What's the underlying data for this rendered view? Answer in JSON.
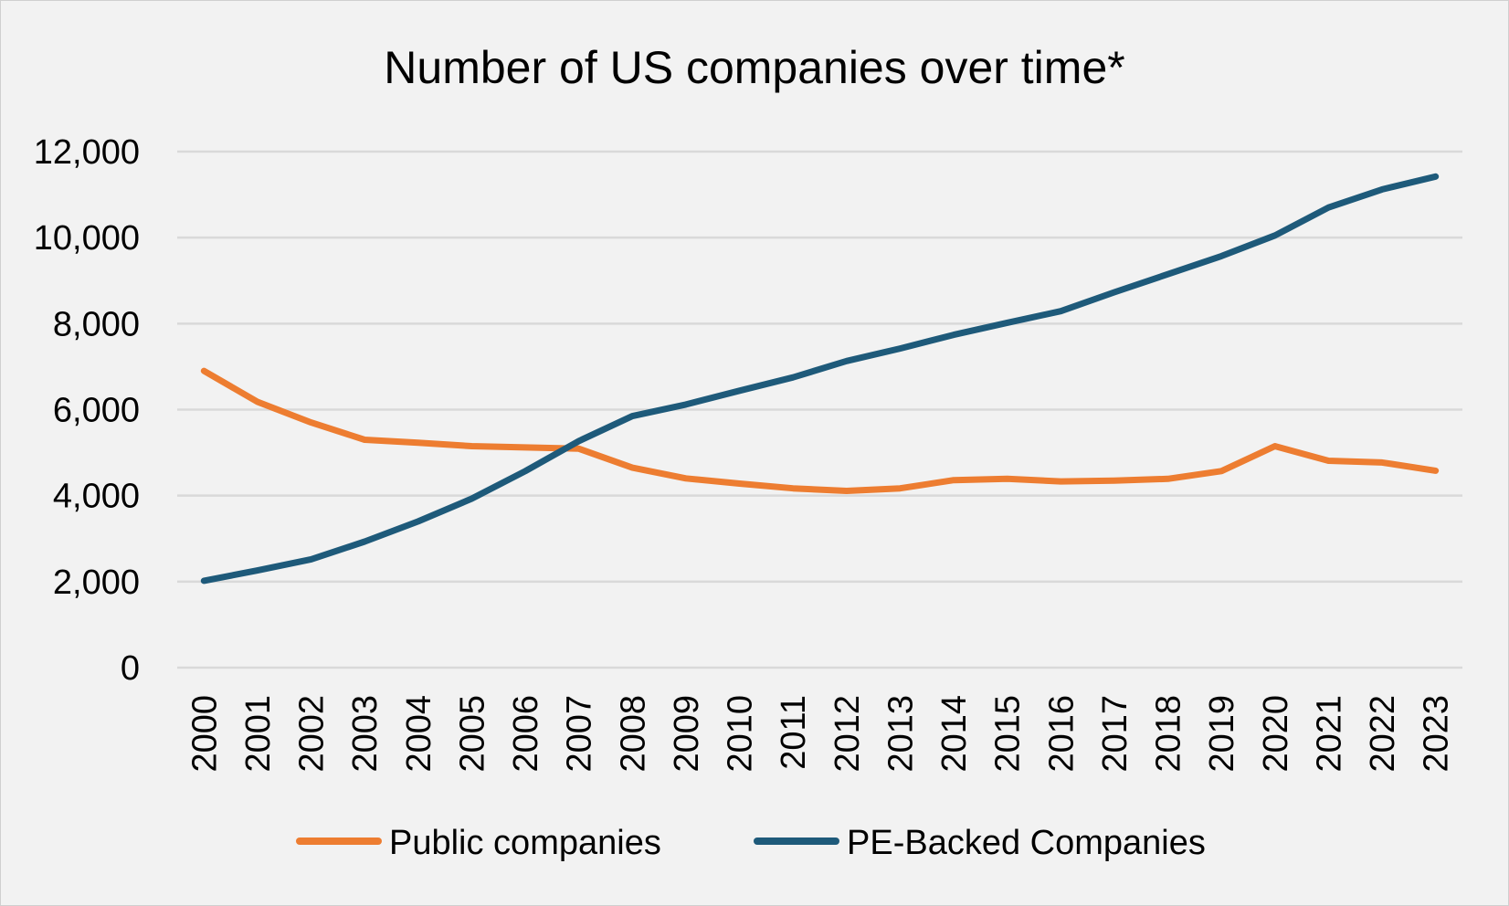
{
  "chart_data": {
    "type": "line",
    "title": "Number of US companies over time*",
    "xlabel": "",
    "ylabel": "",
    "x": [
      "2000",
      "2001",
      "2002",
      "2003",
      "2004",
      "2005",
      "2006",
      "2007",
      "2008",
      "2009",
      "2010",
      "2011",
      "2012",
      "2013",
      "2014",
      "2015",
      "2016",
      "2017",
      "2018",
      "2019",
      "2020",
      "2021",
      "2022",
      "2023"
    ],
    "ylim": [
      0,
      12000
    ],
    "yticks": [
      0,
      2000,
      4000,
      6000,
      8000,
      10000,
      12000
    ],
    "ytick_labels": [
      "0",
      "2,000",
      "4,000",
      "6,000",
      "8,000",
      "10,000",
      "12,000"
    ],
    "grid": true,
    "legend_position": "bottom",
    "series": [
      {
        "name": "Public companies",
        "color": "#ed7d31",
        "values": [
          6900,
          6180,
          5700,
          5300,
          5230,
          5150,
          5120,
          5090,
          4650,
          4400,
          4280,
          4170,
          4110,
          4170,
          4360,
          4390,
          4330,
          4350,
          4390,
          4570,
          5150,
          4810,
          4770,
          4580
        ]
      },
      {
        "name": "PE-Backed Companies",
        "color": "#1e5a7a",
        "values": [
          2020,
          2260,
          2520,
          2930,
          3400,
          3930,
          4570,
          5270,
          5850,
          6120,
          6440,
          6750,
          7130,
          7420,
          7740,
          8020,
          8290,
          8730,
          9150,
          9570,
          10050,
          10700,
          11120,
          11420
        ]
      }
    ]
  }
}
